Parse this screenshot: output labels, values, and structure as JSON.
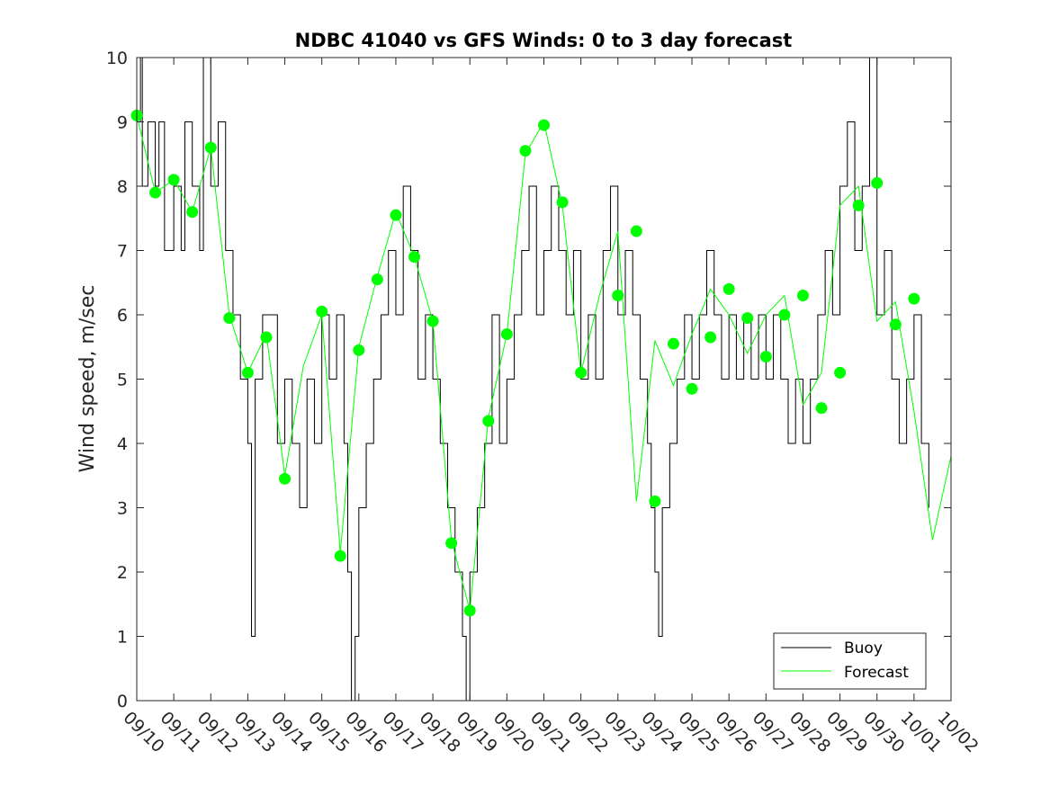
{
  "chart_data": {
    "type": "line",
    "title": "NDBC 41040 vs GFS Winds: 0 to 3 day forecast",
    "xlabel": "",
    "ylabel": "Wind speed, m/sec",
    "ylim": [
      0,
      10
    ],
    "yticks": [
      "0",
      "1",
      "2",
      "3",
      "4",
      "5",
      "6",
      "7",
      "8",
      "9",
      "10"
    ],
    "xlim_days": [
      0,
      22
    ],
    "xticks": [
      "09/10",
      "09/11",
      "09/12",
      "09/13",
      "09/14",
      "09/15",
      "09/16",
      "09/17",
      "09/18",
      "09/19",
      "09/20",
      "09/21",
      "09/22",
      "09/23",
      "09/24",
      "09/25",
      "09/26",
      "09/27",
      "09/28",
      "09/29",
      "09/30",
      "10/01",
      "10/02"
    ],
    "legend": {
      "placement": "bottom-right",
      "entries": [
        {
          "label": "Buoy",
          "color": "#000000"
        },
        {
          "label": "Forecast",
          "color": "#00ff00"
        }
      ]
    },
    "series": [
      {
        "name": "Buoy",
        "color": "#000000",
        "points": [
          [
            0,
            9
          ],
          [
            0.1,
            10
          ],
          [
            0.15,
            8
          ],
          [
            0.3,
            9
          ],
          [
            0.5,
            8
          ],
          [
            0.6,
            9
          ],
          [
            0.75,
            7
          ],
          [
            1.0,
            8
          ],
          [
            1.2,
            7
          ],
          [
            1.3,
            9
          ],
          [
            1.5,
            8
          ],
          [
            1.7,
            7
          ],
          [
            1.8,
            10
          ],
          [
            2.0,
            8
          ],
          [
            2.2,
            9
          ],
          [
            2.4,
            7
          ],
          [
            2.6,
            6
          ],
          [
            2.8,
            5
          ],
          [
            3.0,
            4
          ],
          [
            3.1,
            1
          ],
          [
            3.2,
            5
          ],
          [
            3.4,
            6
          ],
          [
            3.6,
            6
          ],
          [
            3.8,
            4
          ],
          [
            4.0,
            5
          ],
          [
            4.2,
            4
          ],
          [
            4.4,
            3
          ],
          [
            4.6,
            5
          ],
          [
            4.8,
            4
          ],
          [
            5.0,
            6
          ],
          [
            5.2,
            5
          ],
          [
            5.4,
            6
          ],
          [
            5.6,
            4
          ],
          [
            5.7,
            2
          ],
          [
            5.8,
            0
          ],
          [
            5.9,
            1
          ],
          [
            6.0,
            3
          ],
          [
            6.2,
            4
          ],
          [
            6.4,
            5
          ],
          [
            6.6,
            6
          ],
          [
            6.8,
            7
          ],
          [
            7.0,
            6
          ],
          [
            7.2,
            8
          ],
          [
            7.4,
            7
          ],
          [
            7.6,
            5
          ],
          [
            7.8,
            6
          ],
          [
            8.0,
            5
          ],
          [
            8.2,
            4
          ],
          [
            8.4,
            3
          ],
          [
            8.6,
            2
          ],
          [
            8.8,
            1
          ],
          [
            8.9,
            0
          ],
          [
            9.0,
            2
          ],
          [
            9.2,
            3
          ],
          [
            9.4,
            4
          ],
          [
            9.6,
            6
          ],
          [
            9.8,
            4
          ],
          [
            10.0,
            5
          ],
          [
            10.2,
            6
          ],
          [
            10.4,
            7
          ],
          [
            10.6,
            8
          ],
          [
            10.8,
            6
          ],
          [
            11.0,
            7
          ],
          [
            11.2,
            8
          ],
          [
            11.4,
            7
          ],
          [
            11.6,
            6
          ],
          [
            11.8,
            7
          ],
          [
            12.0,
            5
          ],
          [
            12.2,
            6
          ],
          [
            12.4,
            5
          ],
          [
            12.6,
            7
          ],
          [
            12.8,
            8
          ],
          [
            13.0,
            6
          ],
          [
            13.2,
            7
          ],
          [
            13.4,
            6
          ],
          [
            13.6,
            5
          ],
          [
            13.8,
            4
          ],
          [
            13.9,
            3
          ],
          [
            14.0,
            2
          ],
          [
            14.1,
            1
          ],
          [
            14.2,
            3
          ],
          [
            14.4,
            4
          ],
          [
            14.6,
            5
          ],
          [
            14.8,
            6
          ],
          [
            15.0,
            5
          ],
          [
            15.2,
            6
          ],
          [
            15.4,
            7
          ],
          [
            15.6,
            6
          ],
          [
            15.8,
            5
          ],
          [
            16.0,
            6
          ],
          [
            16.2,
            5
          ],
          [
            16.4,
            6
          ],
          [
            16.6,
            5
          ],
          [
            16.8,
            6
          ],
          [
            17.0,
            5
          ],
          [
            17.2,
            6
          ],
          [
            17.4,
            5
          ],
          [
            17.6,
            4
          ],
          [
            17.8,
            5
          ],
          [
            18.0,
            4
          ],
          [
            18.2,
            5
          ],
          [
            18.4,
            6
          ],
          [
            18.6,
            7
          ],
          [
            18.8,
            6
          ],
          [
            19.0,
            8
          ],
          [
            19.2,
            9
          ],
          [
            19.4,
            7
          ],
          [
            19.6,
            8
          ],
          [
            19.8,
            10
          ],
          [
            20.0,
            6
          ],
          [
            20.2,
            7
          ],
          [
            20.4,
            5
          ],
          [
            20.6,
            4
          ],
          [
            20.8,
            5
          ],
          [
            21.0,
            6
          ],
          [
            21.2,
            4
          ],
          [
            21.4,
            3
          ]
        ]
      },
      {
        "name": "Forecast",
        "color": "#00ff00",
        "points": [
          [
            0,
            9.1
          ],
          [
            0.5,
            7.9
          ],
          [
            1.0,
            8.1
          ],
          [
            1.5,
            7.6
          ],
          [
            2.0,
            8.6
          ],
          [
            2.5,
            6.0
          ],
          [
            3.0,
            5.1
          ],
          [
            3.5,
            5.7
          ],
          [
            4.0,
            3.5
          ],
          [
            4.5,
            5.2
          ],
          [
            5.0,
            6.0
          ],
          [
            5.5,
            2.3
          ],
          [
            6.0,
            5.5
          ],
          [
            6.5,
            6.6
          ],
          [
            7.0,
            7.6
          ],
          [
            7.5,
            6.9
          ],
          [
            8.0,
            5.9
          ],
          [
            8.5,
            2.5
          ],
          [
            9.0,
            1.4
          ],
          [
            9.5,
            4.4
          ],
          [
            10.0,
            5.7
          ],
          [
            10.5,
            8.5
          ],
          [
            11.0,
            9.0
          ],
          [
            11.5,
            7.7
          ],
          [
            12.0,
            5.1
          ],
          [
            12.5,
            6.3
          ],
          [
            13.0,
            7.3
          ],
          [
            13.5,
            3.1
          ],
          [
            14.0,
            5.6
          ],
          [
            14.5,
            4.9
          ],
          [
            15.0,
            5.7
          ],
          [
            15.5,
            6.4
          ],
          [
            16.0,
            6.0
          ],
          [
            16.5,
            5.4
          ],
          [
            17.0,
            6.0
          ],
          [
            17.5,
            6.3
          ],
          [
            18.0,
            4.6
          ],
          [
            18.5,
            5.1
          ],
          [
            19.0,
            7.7
          ],
          [
            19.5,
            8.0
          ],
          [
            20.0,
            5.9
          ],
          [
            20.5,
            6.2
          ],
          [
            21.0,
            4.5
          ],
          [
            21.5,
            2.5
          ],
          [
            22.0,
            3.8
          ]
        ]
      }
    ],
    "forecast_markers": [
      [
        0,
        9.1
      ],
      [
        0.5,
        7.9
      ],
      [
        1.0,
        8.1
      ],
      [
        1.5,
        7.6
      ],
      [
        2.0,
        8.6
      ],
      [
        2.5,
        5.95
      ],
      [
        3.0,
        5.1
      ],
      [
        3.5,
        5.65
      ],
      [
        4.0,
        3.45
      ],
      [
        5.0,
        6.05
      ],
      [
        5.5,
        2.25
      ],
      [
        6.0,
        5.45
      ],
      [
        6.5,
        6.55
      ],
      [
        7.0,
        7.55
      ],
      [
        7.5,
        6.9
      ],
      [
        8.0,
        5.9
      ],
      [
        8.5,
        2.45
      ],
      [
        9.0,
        1.4
      ],
      [
        9.5,
        4.35
      ],
      [
        10.0,
        5.7
      ],
      [
        10.5,
        8.55
      ],
      [
        11.0,
        8.95
      ],
      [
        11.5,
        7.75
      ],
      [
        12.0,
        5.1
      ],
      [
        13.0,
        6.3
      ],
      [
        13.5,
        7.3
      ],
      [
        14.0,
        3.1
      ],
      [
        14.5,
        5.55
      ],
      [
        15.0,
        4.85
      ],
      [
        15.5,
        5.65
      ],
      [
        16.0,
        6.4
      ],
      [
        16.5,
        5.95
      ],
      [
        17.0,
        5.35
      ],
      [
        17.5,
        6.0
      ],
      [
        18.0,
        6.3
      ],
      [
        18.5,
        4.55
      ],
      [
        19.0,
        5.1
      ],
      [
        19.5,
        7.7
      ],
      [
        20.0,
        8.05
      ],
      [
        20.5,
        5.85
      ],
      [
        21.0,
        6.25
      ]
    ]
  }
}
